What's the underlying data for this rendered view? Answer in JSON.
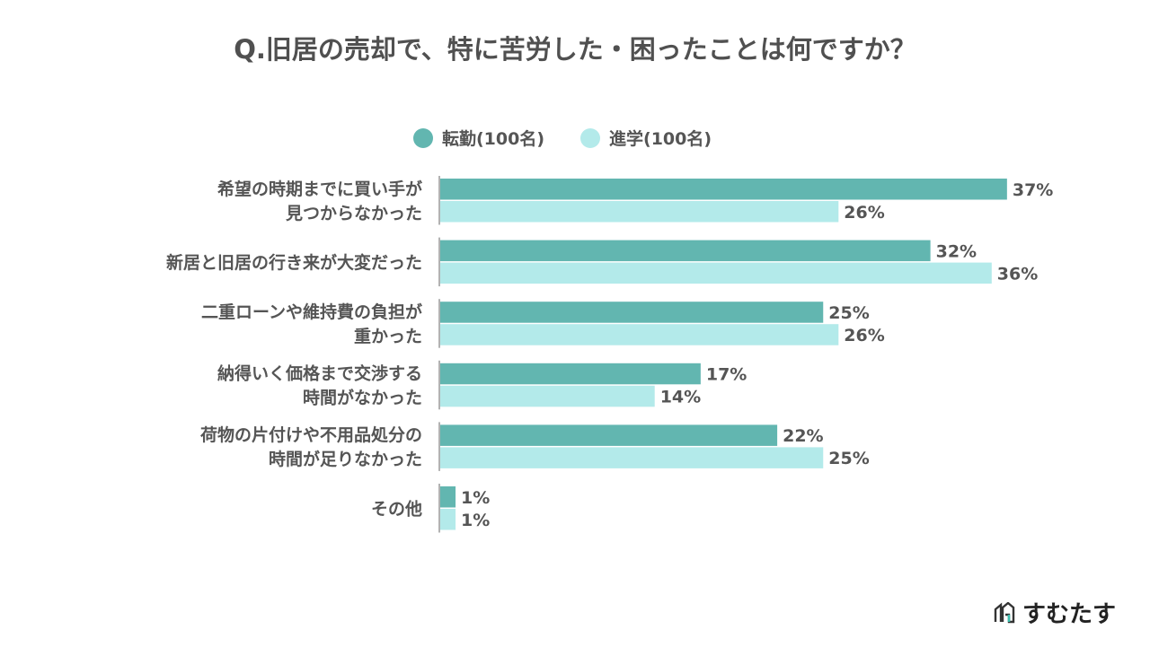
{
  "chart_data": {
    "type": "bar",
    "orientation": "horizontal",
    "title": "Q.旧居の売却で、特に苦労した・困ったことは何ですか？",
    "categories": [
      [
        "希望の時期までに買い手が",
        "見つからなかった"
      ],
      [
        "新居と旧居の行き来が大変だった"
      ],
      [
        "二重ローンや維持費の負担が",
        "重かった"
      ],
      [
        "納得いく価格まで交渉する",
        "時間がなかった"
      ],
      [
        "荷物の片付けや不用品処分の",
        "時間が足りなかった"
      ],
      [
        "その他"
      ]
    ],
    "series": [
      {
        "name": "転勤(100名)",
        "color": "#62b6b0",
        "values": [
          37,
          32,
          25,
          17,
          22,
          1
        ]
      },
      {
        "name": "進学(100名)",
        "color": "#b3eaea",
        "values": [
          26,
          36,
          26,
          14,
          25,
          1
        ]
      }
    ],
    "value_suffix": "%",
    "xlim": [
      0,
      40
    ],
    "grid": false,
    "legend_position": "top"
  },
  "logo": "すむたす"
}
